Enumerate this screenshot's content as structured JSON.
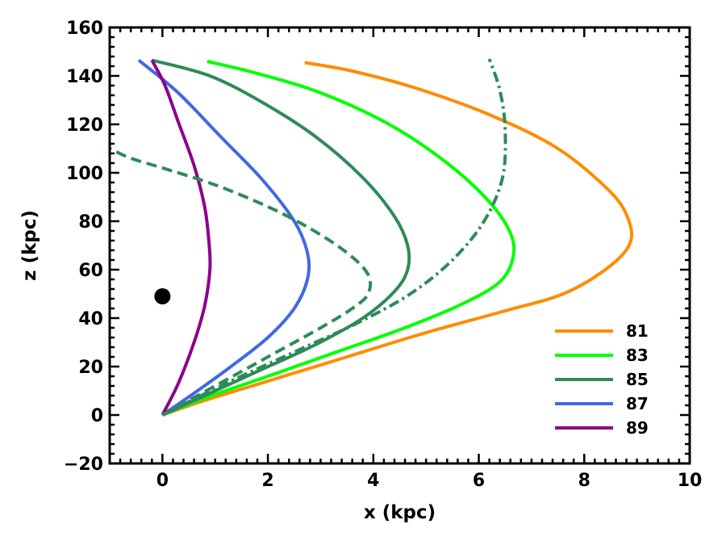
{
  "chart_data": {
    "type": "line",
    "title": "",
    "xlabel": "x (kpc)",
    "ylabel": "z (kpc)",
    "xlim": [
      -1,
      10
    ],
    "ylim": [
      -20,
      160
    ],
    "xticks": [
      "0",
      "2",
      "4",
      "6",
      "8",
      "10"
    ],
    "yticks": [
      "−20",
      "0",
      "20",
      "40",
      "60",
      "80",
      "100",
      "120",
      "140",
      "160"
    ],
    "grid": false,
    "legend_position": "lower-right",
    "series": [
      {
        "name": "81",
        "color": "#ff8c00",
        "style": "solid",
        "x": [
          0,
          0.8,
          2.0,
          3.5,
          5.0,
          6.5,
          7.6,
          8.4,
          8.85,
          8.85,
          8.5,
          7.5,
          6.2,
          4.8,
          3.6,
          2.7
        ],
        "y": [
          0,
          6,
          14,
          24,
          34,
          43,
          50,
          60,
          70,
          80,
          92,
          110,
          124,
          135,
          142,
          145.5
        ]
      },
      {
        "name": "83",
        "color": "#00ff00",
        "style": "solid",
        "x": [
          0,
          0.8,
          2.0,
          3.3,
          4.6,
          5.7,
          6.4,
          6.65,
          6.6,
          6.2,
          5.4,
          4.3,
          3.0,
          1.8,
          0.85
        ],
        "y": [
          0,
          7,
          16,
          26,
          36,
          46,
          55,
          65,
          75,
          88,
          104,
          120,
          133,
          141,
          146
        ]
      },
      {
        "name": "85",
        "color": "#2e8b57",
        "style": "solid",
        "x": [
          0,
          0.8,
          1.8,
          2.9,
          3.8,
          4.4,
          4.65,
          4.65,
          4.4,
          3.8,
          2.9,
          1.9,
          0.9,
          -0.2
        ],
        "y": [
          0,
          8,
          18,
          29,
          40,
          51,
          60,
          70,
          82,
          98,
          115,
          129,
          140,
          146.5
        ]
      },
      {
        "name": "87",
        "color": "#4169e1",
        "style": "solid",
        "x": [
          0,
          0.6,
          1.3,
          2.0,
          2.5,
          2.75,
          2.75,
          2.5,
          1.9,
          1.1,
          0.3,
          -0.45
        ],
        "y": [
          0,
          9,
          20,
          32,
          44,
          56,
          67,
          80,
          97,
          115,
          133,
          146.5
        ]
      },
      {
        "name": "89",
        "color": "#8b008b",
        "style": "solid",
        "x": [
          0,
          0.3,
          0.6,
          0.8,
          0.9,
          0.88,
          0.8,
          0.6,
          0.3,
          0.05,
          -0.2
        ],
        "y": [
          0,
          13,
          30,
          45,
          60,
          72,
          86,
          103,
          121,
          136,
          146.5
        ]
      },
      {
        "name": "",
        "color": "#2e8b57",
        "style": "dashed",
        "x": [
          0,
          1.0,
          2.0,
          3.0,
          3.6,
          3.9,
          3.9,
          3.5,
          2.8,
          2.0,
          1.0,
          0,
          -0.6,
          -1.0
        ],
        "y": [
          0,
          12,
          24,
          36,
          44,
          50,
          58,
          67,
          77,
          86,
          95,
          102,
          106,
          110
        ]
      },
      {
        "name": "",
        "color": "#2e8b57",
        "style": "dashdot",
        "x": [
          0,
          1.2,
          2.6,
          3.7,
          4.7,
          5.5,
          6.1,
          6.45,
          6.5,
          6.4,
          6.2
        ],
        "y": [
          0,
          13,
          27,
          38,
          50,
          64,
          80,
          98,
          118,
          134,
          147
        ]
      }
    ],
    "points": [
      {
        "x": 0,
        "y": 49,
        "color": "#000000"
      }
    ]
  }
}
